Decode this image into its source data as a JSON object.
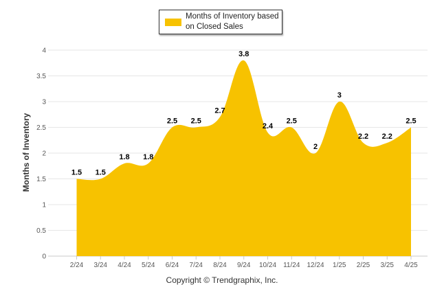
{
  "chart_data": {
    "type": "area",
    "categories": [
      "2/24",
      "3/24",
      "4/24",
      "5/24",
      "6/24",
      "7/24",
      "8/24",
      "9/24",
      "10/24",
      "11/24",
      "12/24",
      "1/25",
      "2/25",
      "3/25",
      "4/25"
    ],
    "series": [
      {
        "name": "Months of Inventory based on Closed Sales",
        "values": [
          1.5,
          1.5,
          1.8,
          1.8,
          2.5,
          2.5,
          2.7,
          3.8,
          2.4,
          2.5,
          2,
          3,
          2.2,
          2.2,
          2.5
        ],
        "labels": [
          "1.5",
          "1.5",
          "1.8",
          "1.8",
          "2.5",
          "2.5",
          "2.7",
          "3.8",
          "2.4",
          "2.5",
          "2",
          "3",
          "2.2",
          "2.2",
          "2.5"
        ]
      }
    ],
    "ylabel": "Months of Inventory",
    "xlabel": "",
    "ylim": [
      0,
      4
    ],
    "yticks": [
      "0",
      "0.5",
      "1",
      "1.5",
      "2",
      "2.5",
      "3",
      "3.5",
      "4"
    ],
    "grid": true,
    "legend": "top-center",
    "color": "#F7C200"
  },
  "legend": {
    "line1": "Months of Inventory based",
    "line2": "on Closed Sales"
  },
  "footer": {
    "copyright": "Copyright © Trendgraphix, Inc."
  }
}
